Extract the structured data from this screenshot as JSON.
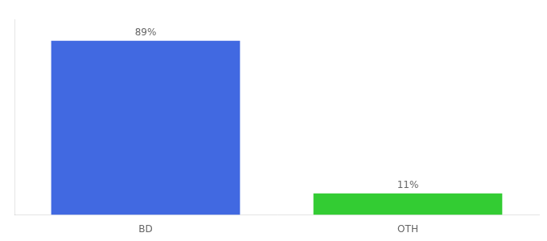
{
  "chart_data": {
    "type": "bar",
    "categories": [
      "BD",
      "OTH"
    ],
    "values": [
      89,
      11
    ],
    "value_labels": [
      "89%",
      "11%"
    ],
    "data_labels": true,
    "colors": [
      "#4169e1",
      "#33cc33"
    ],
    "ylim": [
      0,
      100
    ],
    "tick_labels": "x",
    "grid": false
  }
}
